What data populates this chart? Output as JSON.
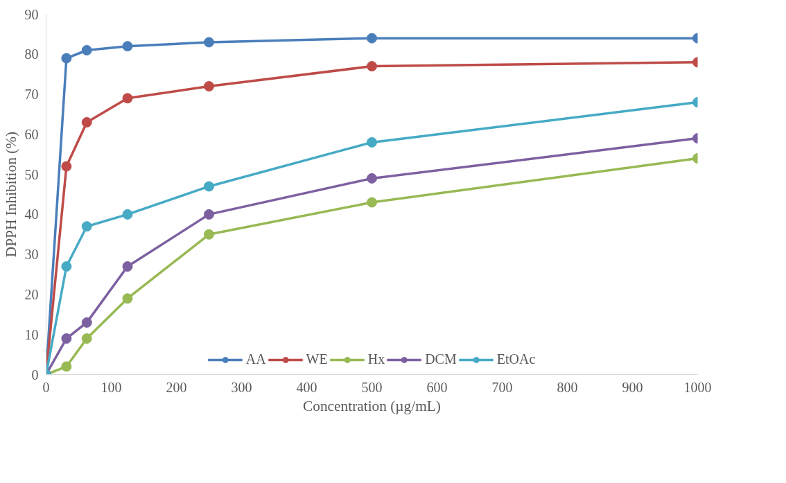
{
  "chart_data": {
    "type": "line",
    "xlabel": "Concentration (µg/mL)",
    "ylabel": "DPPH Inhibition (%)",
    "x": [
      0,
      31.25,
      62.5,
      125,
      250,
      500,
      1000
    ],
    "xlim": [
      0,
      1000
    ],
    "xticks": [
      0,
      100,
      200,
      300,
      400,
      500,
      600,
      700,
      800,
      900,
      1000
    ],
    "ylim": [
      0,
      90
    ],
    "yticks": [
      0,
      10,
      20,
      30,
      40,
      50,
      60,
      70,
      80,
      90
    ],
    "grid": false,
    "legend": "bottom",
    "marker": "circle",
    "line_style": "solid",
    "series": [
      {
        "name": "AA",
        "color": "#4a7ebb",
        "values": [
          0,
          79,
          81,
          82,
          83,
          84,
          84
        ]
      },
      {
        "name": "WE",
        "color": "#be4b48",
        "values": [
          0,
          52,
          63,
          69,
          72,
          77,
          78
        ]
      },
      {
        "name": "Hx",
        "color": "#98b954",
        "values": [
          0,
          2,
          9,
          19,
          35,
          43,
          54
        ]
      },
      {
        "name": "DCM",
        "color": "#7d60a0",
        "values": [
          0,
          9,
          13,
          27,
          40,
          49,
          59
        ]
      },
      {
        "name": "EtOAc",
        "color": "#46aac5",
        "values": [
          0,
          27,
          37,
          40,
          47,
          58,
          68
        ]
      }
    ]
  }
}
